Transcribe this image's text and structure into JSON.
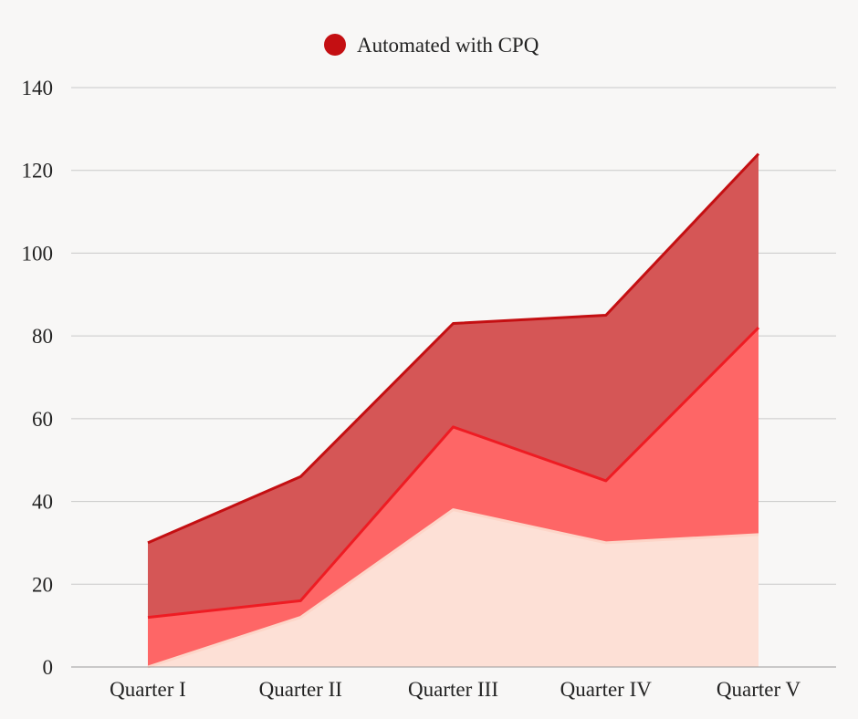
{
  "chart_data": {
    "type": "area",
    "stacked": true,
    "categories": [
      "Quarter I",
      "Quarter II",
      "Quarter III",
      "Quarter IV",
      "Quarter V"
    ],
    "ylim": [
      0,
      140
    ],
    "yticks": [
      0,
      20,
      40,
      60,
      80,
      100,
      120,
      140
    ],
    "grid": true,
    "legend_position": "top",
    "legend": [
      "Automated with CPQ"
    ],
    "series": [
      {
        "color": "#fde0d6",
        "line_color": "#fdd5c8",
        "values": [
          0,
          12,
          38,
          30,
          32
        ]
      },
      {
        "color": "#fe6666",
        "line_color": "#ee1c23",
        "values": [
          12,
          4,
          20,
          15,
          50
        ]
      },
      {
        "name": "Automated with CPQ",
        "color": "#d55656",
        "line_color": "#c40f12",
        "values": [
          18,
          30,
          25,
          40,
          42
        ]
      }
    ],
    "legend_color": "#c40f12"
  }
}
